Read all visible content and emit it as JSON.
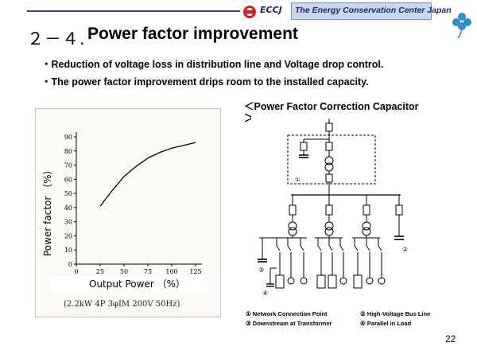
{
  "header": {
    "logo_text": "ECCJ",
    "organization": "The Energy Conservation Center Japan"
  },
  "title": {
    "number": "２－４.",
    "text": "Power factor improvement"
  },
  "bullets": [
    "・Reduction of voltage loss in distribution line and Voltage drop control.",
    "・The power factor improvement drips room to the installed capacity."
  ],
  "chart_data": {
    "type": "line",
    "xlabel": "Output Power （%）",
    "ylabel": "Power factor （%）",
    "caption": "(2.2kW 4P 3φIM 200V 50Hz)",
    "xlim": [
      0,
      125
    ],
    "ylim": [
      0,
      90
    ],
    "x_ticks": [
      "0",
      "25",
      "50",
      "75",
      "100",
      "125"
    ],
    "y_ticks": [
      "0",
      "10",
      "20",
      "30",
      "40",
      "50",
      "60",
      "70",
      "80",
      "90"
    ],
    "series": [
      {
        "x": [
          25,
          37.5,
          50,
          62.5,
          75,
          87.5,
          100,
          112.5,
          125
        ],
        "values": [
          41,
          52,
          62,
          69,
          75,
          79,
          82,
          84,
          86
        ]
      }
    ]
  },
  "diagram": {
    "title": "＜Power Factor Correction Capacitor",
    "title_close": "＞",
    "markers": [
      "①",
      "②",
      "③",
      "④"
    ],
    "legend": [
      "① Network Connection Point",
      "② High-Voltage Bus Line",
      "③ Downstream at Transformer",
      "④ Parallel in Load"
    ]
  },
  "page_number": "22",
  "colors": {
    "accent": "#3a3f9a",
    "header_box": "#c9d6f0",
    "logo_red": "#d42020",
    "clover": "#2f8fc8"
  }
}
